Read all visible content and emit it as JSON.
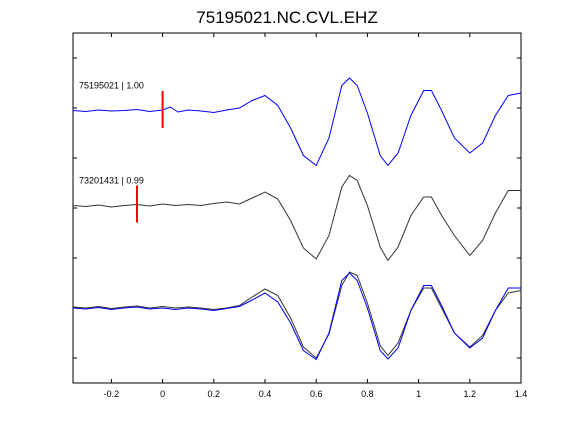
{
  "chart_data": {
    "type": "line",
    "title": "75195021.NC.CVL.EHZ",
    "xlabel": "",
    "ylabel": "",
    "xlim": [
      -0.35,
      1.4
    ],
    "ylim": [
      0,
      7
    ],
    "grid": false,
    "x_ticks": [
      -0.2,
      0,
      0.2,
      0.4,
      0.6,
      0.8,
      1,
      1.2,
      1.4
    ],
    "x_tick_labels": [
      "-0.2",
      "0",
      "0.2",
      "0.4",
      "0.6",
      "0.8",
      "1",
      "1.2",
      "1.4"
    ],
    "y_ticks": [
      0.5,
      1.5,
      2.5,
      3.5,
      4.5,
      5.5,
      6.5
    ],
    "colors": {
      "blue": "#0000ff",
      "black": "#333333",
      "marker": "#ff0000"
    },
    "traces": [
      {
        "label": "75195021 | 1.00",
        "color": "#0000ff",
        "marker_x": 0.0,
        "points": [
          [
            -0.35,
            5.45
          ],
          [
            -0.3,
            5.43
          ],
          [
            -0.25,
            5.46
          ],
          [
            -0.2,
            5.44
          ],
          [
            -0.15,
            5.45
          ],
          [
            -0.1,
            5.47
          ],
          [
            -0.05,
            5.43
          ],
          [
            0,
            5.46
          ],
          [
            0.03,
            5.52
          ],
          [
            0.06,
            5.42
          ],
          [
            0.1,
            5.46
          ],
          [
            0.15,
            5.44
          ],
          [
            0.2,
            5.41
          ],
          [
            0.25,
            5.46
          ],
          [
            0.3,
            5.5
          ],
          [
            0.35,
            5.65
          ],
          [
            0.4,
            5.75
          ],
          [
            0.45,
            5.55
          ],
          [
            0.5,
            5.1
          ],
          [
            0.55,
            4.55
          ],
          [
            0.6,
            4.35
          ],
          [
            0.65,
            4.9
          ],
          [
            0.7,
            5.95
          ],
          [
            0.73,
            6.1
          ],
          [
            0.76,
            5.95
          ],
          [
            0.8,
            5.4
          ],
          [
            0.85,
            4.55
          ],
          [
            0.88,
            4.35
          ],
          [
            0.92,
            4.6
          ],
          [
            0.97,
            5.35
          ],
          [
            1.02,
            5.85
          ],
          [
            1.05,
            5.85
          ],
          [
            1.09,
            5.45
          ],
          [
            1.14,
            4.9
          ],
          [
            1.2,
            4.6
          ],
          [
            1.25,
            4.8
          ],
          [
            1.3,
            5.35
          ],
          [
            1.35,
            5.75
          ],
          [
            1.4,
            5.8
          ]
        ]
      },
      {
        "label": "73201431 | 0.99",
        "color": "#333333",
        "marker_x": -0.1,
        "points": [
          [
            -0.35,
            3.55
          ],
          [
            -0.3,
            3.53
          ],
          [
            -0.25,
            3.56
          ],
          [
            -0.2,
            3.52
          ],
          [
            -0.15,
            3.55
          ],
          [
            -0.1,
            3.57
          ],
          [
            -0.05,
            3.54
          ],
          [
            0,
            3.58
          ],
          [
            0.05,
            3.55
          ],
          [
            0.1,
            3.57
          ],
          [
            0.15,
            3.55
          ],
          [
            0.2,
            3.59
          ],
          [
            0.25,
            3.62
          ],
          [
            0.3,
            3.58
          ],
          [
            0.35,
            3.7
          ],
          [
            0.4,
            3.82
          ],
          [
            0.45,
            3.68
          ],
          [
            0.5,
            3.25
          ],
          [
            0.55,
            2.7
          ],
          [
            0.6,
            2.48
          ],
          [
            0.65,
            2.95
          ],
          [
            0.7,
            3.92
          ],
          [
            0.73,
            4.15
          ],
          [
            0.76,
            4.05
          ],
          [
            0.8,
            3.55
          ],
          [
            0.85,
            2.72
          ],
          [
            0.88,
            2.45
          ],
          [
            0.92,
            2.72
          ],
          [
            0.97,
            3.35
          ],
          [
            1.02,
            3.72
          ],
          [
            1.05,
            3.72
          ],
          [
            1.09,
            3.35
          ],
          [
            1.14,
            2.95
          ],
          [
            1.2,
            2.55
          ],
          [
            1.25,
            2.85
          ],
          [
            1.3,
            3.4
          ],
          [
            1.35,
            3.85
          ],
          [
            1.4,
            3.85
          ]
        ]
      },
      {
        "label": "",
        "color": "#333333",
        "marker_x": null,
        "points": [
          [
            -0.35,
            1.52
          ],
          [
            -0.3,
            1.5
          ],
          [
            -0.25,
            1.53
          ],
          [
            -0.2,
            1.49
          ],
          [
            -0.15,
            1.52
          ],
          [
            -0.1,
            1.54
          ],
          [
            -0.05,
            1.5
          ],
          [
            0,
            1.53
          ],
          [
            0.05,
            1.5
          ],
          [
            0.1,
            1.52
          ],
          [
            0.15,
            1.5
          ],
          [
            0.2,
            1.47
          ],
          [
            0.25,
            1.5
          ],
          [
            0.3,
            1.55
          ],
          [
            0.35,
            1.72
          ],
          [
            0.4,
            1.88
          ],
          [
            0.45,
            1.75
          ],
          [
            0.5,
            1.3
          ],
          [
            0.55,
            0.72
          ],
          [
            0.6,
            0.5
          ],
          [
            0.65,
            0.98
          ],
          [
            0.7,
            1.95
          ],
          [
            0.73,
            2.22
          ],
          [
            0.76,
            2.15
          ],
          [
            0.8,
            1.6
          ],
          [
            0.85,
            0.75
          ],
          [
            0.88,
            0.55
          ],
          [
            0.92,
            0.8
          ],
          [
            0.97,
            1.45
          ],
          [
            1.02,
            1.9
          ],
          [
            1.05,
            1.9
          ],
          [
            1.09,
            1.5
          ],
          [
            1.14,
            1.0
          ],
          [
            1.2,
            0.72
          ],
          [
            1.25,
            0.95
          ],
          [
            1.3,
            1.45
          ],
          [
            1.35,
            1.8
          ],
          [
            1.4,
            1.85
          ]
        ]
      },
      {
        "label": "",
        "color": "#0000ff",
        "marker_x": null,
        "points": [
          [
            -0.35,
            1.5
          ],
          [
            -0.3,
            1.48
          ],
          [
            -0.25,
            1.51
          ],
          [
            -0.2,
            1.47
          ],
          [
            -0.15,
            1.5
          ],
          [
            -0.1,
            1.52
          ],
          [
            -0.05,
            1.48
          ],
          [
            0,
            1.5
          ],
          [
            0.05,
            1.47
          ],
          [
            0.1,
            1.5
          ],
          [
            0.15,
            1.48
          ],
          [
            0.2,
            1.45
          ],
          [
            0.25,
            1.49
          ],
          [
            0.3,
            1.53
          ],
          [
            0.35,
            1.66
          ],
          [
            0.4,
            1.8
          ],
          [
            0.45,
            1.62
          ],
          [
            0.5,
            1.2
          ],
          [
            0.55,
            0.65
          ],
          [
            0.6,
            0.47
          ],
          [
            0.65,
            1.0
          ],
          [
            0.7,
            2.05
          ],
          [
            0.73,
            2.2
          ],
          [
            0.76,
            2.05
          ],
          [
            0.8,
            1.5
          ],
          [
            0.85,
            0.65
          ],
          [
            0.88,
            0.48
          ],
          [
            0.92,
            0.7
          ],
          [
            0.97,
            1.45
          ],
          [
            1.02,
            1.95
          ],
          [
            1.05,
            1.95
          ],
          [
            1.09,
            1.55
          ],
          [
            1.14,
            1.0
          ],
          [
            1.2,
            0.7
          ],
          [
            1.25,
            0.9
          ],
          [
            1.3,
            1.45
          ],
          [
            1.35,
            1.9
          ],
          [
            1.4,
            1.9
          ]
        ]
      }
    ]
  }
}
